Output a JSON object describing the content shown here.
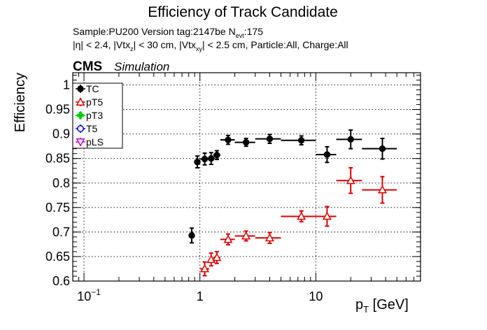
{
  "chart_data": {
    "type": "scatter",
    "title": "Efficiency of Track Candidate",
    "subtitle_parts": {
      "sample": "Sample:PU200   Version tag:2147be  N",
      "sample_sub": "evt",
      "sample_end": ":175",
      "cuts_a": "|η| < 2.4, |Vtx",
      "cuts_sub1": "z",
      "cuts_b": "| < 30 cm, |Vtx",
      "cuts_sub2": "xy",
      "cuts_c": "| < 2.5 cm, Particle:All, Charge:All"
    },
    "cms_label": "CMS",
    "simulation_label": "Simulation",
    "ylabel": "Efficiency",
    "xlabel_main": "p",
    "xlabel_sub": "T",
    "xlabel_unit": " [GeV]",
    "x_scale": "log",
    "xlim": [
      0.08,
      80
    ],
    "ylim": [
      0.6,
      1.025
    ],
    "grid": true,
    "legend_position": "top-left",
    "x_ticks": [
      {
        "value": 0.1,
        "base": "10",
        "exp": "−1"
      },
      {
        "value": 1,
        "base": "1",
        "exp": ""
      },
      {
        "value": 10,
        "base": "10",
        "exp": ""
      }
    ],
    "y_ticks": [
      "0.6",
      "0.65",
      "0.7",
      "0.75",
      "0.8",
      "0.85",
      "0.9",
      "0.95",
      "1"
    ],
    "series": [
      {
        "name": "TC",
        "color": "#000000",
        "marker": "filled-circle",
        "points": [
          {
            "x": 0.85,
            "xlo": 0.8,
            "xhi": 0.9,
            "y": 0.693,
            "err": 0.015
          },
          {
            "x": 0.95,
            "xlo": 0.9,
            "xhi": 1.0,
            "y": 0.843,
            "err": 0.012
          },
          {
            "x": 1.1,
            "xlo": 1.0,
            "xhi": 1.2,
            "y": 0.849,
            "err": 0.012
          },
          {
            "x": 1.25,
            "xlo": 1.2,
            "xhi": 1.3,
            "y": 0.85,
            "err": 0.012
          },
          {
            "x": 1.4,
            "xlo": 1.3,
            "xhi": 1.5,
            "y": 0.857,
            "err": 0.009
          },
          {
            "x": 1.75,
            "xlo": 1.5,
            "xhi": 2.0,
            "y": 0.888,
            "err": 0.009
          },
          {
            "x": 2.5,
            "xlo": 2.0,
            "xhi": 3.0,
            "y": 0.883,
            "err": 0.008
          },
          {
            "x": 4.0,
            "xlo": 3.0,
            "xhi": 5.0,
            "y": 0.89,
            "err": 0.009
          },
          {
            "x": 7.5,
            "xlo": 5.0,
            "xhi": 10.0,
            "y": 0.887,
            "err": 0.009
          },
          {
            "x": 12.5,
            "xlo": 10.0,
            "xhi": 15.0,
            "y": 0.858,
            "err": 0.016
          },
          {
            "x": 20.0,
            "xlo": 15.0,
            "xhi": 25.0,
            "y": 0.889,
            "err": 0.019
          },
          {
            "x": 37.5,
            "xlo": 25.0,
            "xhi": 50.0,
            "y": 0.87,
            "err": 0.021
          }
        ]
      },
      {
        "name": "pT5",
        "color": "#dd0000",
        "marker": "open-triangle",
        "points": [
          {
            "x": 1.1,
            "xlo": 1.0,
            "xhi": 1.2,
            "y": 0.625,
            "err": 0.014
          },
          {
            "x": 1.25,
            "xlo": 1.2,
            "xhi": 1.3,
            "y": 0.644,
            "err": 0.013
          },
          {
            "x": 1.4,
            "xlo": 1.3,
            "xhi": 1.5,
            "y": 0.648,
            "err": 0.012
          },
          {
            "x": 1.75,
            "xlo": 1.5,
            "xhi": 2.0,
            "y": 0.685,
            "err": 0.011
          },
          {
            "x": 2.5,
            "xlo": 2.0,
            "xhi": 3.0,
            "y": 0.692,
            "err": 0.01
          },
          {
            "x": 4.0,
            "xlo": 3.0,
            "xhi": 5.0,
            "y": 0.688,
            "err": 0.011
          },
          {
            "x": 7.5,
            "xlo": 5.0,
            "xhi": 10.0,
            "y": 0.732,
            "err": 0.011
          },
          {
            "x": 12.5,
            "xlo": 10.0,
            "xhi": 15.0,
            "y": 0.732,
            "err": 0.02
          },
          {
            "x": 20.0,
            "xlo": 15.0,
            "xhi": 25.0,
            "y": 0.805,
            "err": 0.026
          },
          {
            "x": 37.5,
            "xlo": 25.0,
            "xhi": 50.0,
            "y": 0.786,
            "err": 0.027
          }
        ]
      },
      {
        "name": "pT3",
        "color": "#00cc00",
        "marker": "filled-cross",
        "points": []
      },
      {
        "name": "T5",
        "color": "#0000dd",
        "marker": "open-circle",
        "points": []
      },
      {
        "name": "pLS",
        "color": "#cc00cc",
        "marker": "open-triangle-down",
        "points": []
      }
    ]
  }
}
